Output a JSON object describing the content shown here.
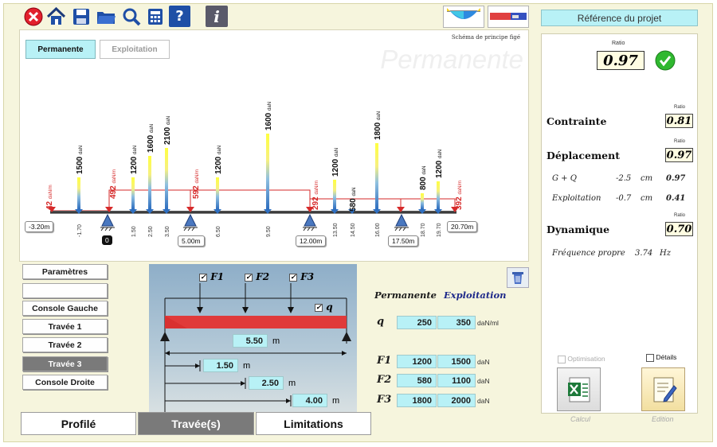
{
  "toolbar": {
    "info_label": "i",
    "help_label": "?"
  },
  "project": {
    "reference_label": "Référence du projet"
  },
  "diagram": {
    "tab_permanent": "Permanente",
    "tab_exploitation": "Exploitation",
    "watermark": "Permanente",
    "schema_label": "Schéma de principe figé",
    "point_loads": [
      {
        "pos": "-1.70",
        "value": "1500",
        "unit": "daN"
      },
      {
        "pos": "1.50",
        "value": "1200",
        "unit": "daN"
      },
      {
        "pos": "2.50",
        "value": "1600",
        "unit": "daN"
      },
      {
        "pos": "3.50",
        "value": "2100",
        "unit": "daN"
      },
      {
        "pos": "6.50",
        "value": "1200",
        "unit": "daN"
      },
      {
        "pos": "9.50",
        "value": "1600",
        "unit": "daN"
      },
      {
        "pos": "13.50",
        "value": "1200",
        "unit": "daN"
      },
      {
        "pos": "14.50",
        "value": "580",
        "unit": "daN"
      },
      {
        "pos": "16.00",
        "value": "1800",
        "unit": "daN"
      },
      {
        "pos": "18.70",
        "value": "800",
        "unit": "daN"
      },
      {
        "pos": "19.70",
        "value": "1200",
        "unit": "daN"
      }
    ],
    "dist_loads": [
      {
        "value": "42",
        "unit": "daN/m"
      },
      {
        "value": "492",
        "unit": "daN/m"
      },
      {
        "value": "592",
        "unit": "daN/m"
      },
      {
        "value": "292",
        "unit": "daN/m"
      },
      {
        "value": "392",
        "unit": "daN/m"
      }
    ],
    "supports": [
      "0",
      "5.00m",
      "12.00m",
      "17.50m"
    ],
    "ends": [
      "-3.20m",
      "20.70m"
    ]
  },
  "nav": {
    "items": [
      "Paramètres",
      "",
      "Console Gauche",
      "Travée 1",
      "Travée 2",
      "Travée 3",
      "Console Droite"
    ],
    "active_index": 5
  },
  "span": {
    "f1": "F1",
    "f2": "F2",
    "f3": "F3",
    "q": "q",
    "length": "5.50",
    "d1": "1.50",
    "d2": "2.50",
    "d3": "4.00",
    "unit_m": "m"
  },
  "loads_table": {
    "col_perm": "Permanente",
    "col_expl": "Exploitation",
    "rows": [
      {
        "label": "q",
        "perm": "250",
        "expl": "350",
        "unit": "daN/ml"
      },
      {
        "label": "F1",
        "perm": "1200",
        "expl": "1500",
        "unit": "daN"
      },
      {
        "label": "F2",
        "perm": "580",
        "expl": "1100",
        "unit": "daN"
      },
      {
        "label": "F3",
        "perm": "1800",
        "expl": "2000",
        "unit": "daN"
      }
    ]
  },
  "results": {
    "ratio_label": "Ratio",
    "ratio_main": "0.97",
    "contrainte_label": "Contrainte",
    "contrainte_ratio": "0.81",
    "deplacement_label": "Déplacement",
    "deplacement_ratio": "0.97",
    "gq_label": "G + Q",
    "gq_value": "-2.5",
    "gq_unit": "cm",
    "gq_ratio": "0.97",
    "expl_label": "Exploitation",
    "expl_value": "-0.7",
    "expl_unit": "cm",
    "expl_ratio": "0.41",
    "dynamique_label": "Dynamique",
    "dynamique_ratio": "0.70",
    "freq_label": "Fréquence propre",
    "freq_value": "3.74",
    "freq_unit": "Hz",
    "optimisation_label": "Optimisation",
    "details_label": "Détails",
    "calcul_label": "Calcul",
    "edition_label": "Edition"
  },
  "bottom_tabs": [
    "Profilé",
    "Travée(s)",
    "Limitations"
  ],
  "colors": {
    "accent_cyan": "#b8f1f6",
    "active_tab": "#7a7a7a",
    "frame": "#f6f5dd",
    "load_red": "#e02020",
    "ok_green": "#2fb82f"
  }
}
